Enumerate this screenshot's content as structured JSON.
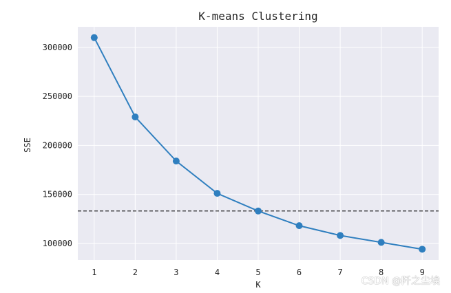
{
  "chart_data": {
    "type": "line",
    "title": "K-means Clustering",
    "xlabel": "K",
    "ylabel": "SSE",
    "x": [
      1,
      2,
      3,
      4,
      5,
      6,
      7,
      8,
      9
    ],
    "series": [
      {
        "values": [
          310000,
          229000,
          184000,
          151000,
          133000,
          118000,
          108000,
          101000,
          94000
        ],
        "color": "#2f7fbf",
        "marker": "circle"
      }
    ],
    "reference_line": {
      "y": 133000,
      "style": "dashed",
      "color": "#222222"
    },
    "xlim": [
      0.6,
      9.4
    ],
    "ylim": [
      83000,
      321000
    ],
    "xticks": [
      1,
      2,
      3,
      4,
      5,
      6,
      7,
      8,
      9
    ],
    "yticks": [
      100000,
      150000,
      200000,
      250000,
      300000
    ],
    "grid": true,
    "background": "#eaeaf2"
  },
  "watermark": "CSDN @阡之尘埃"
}
